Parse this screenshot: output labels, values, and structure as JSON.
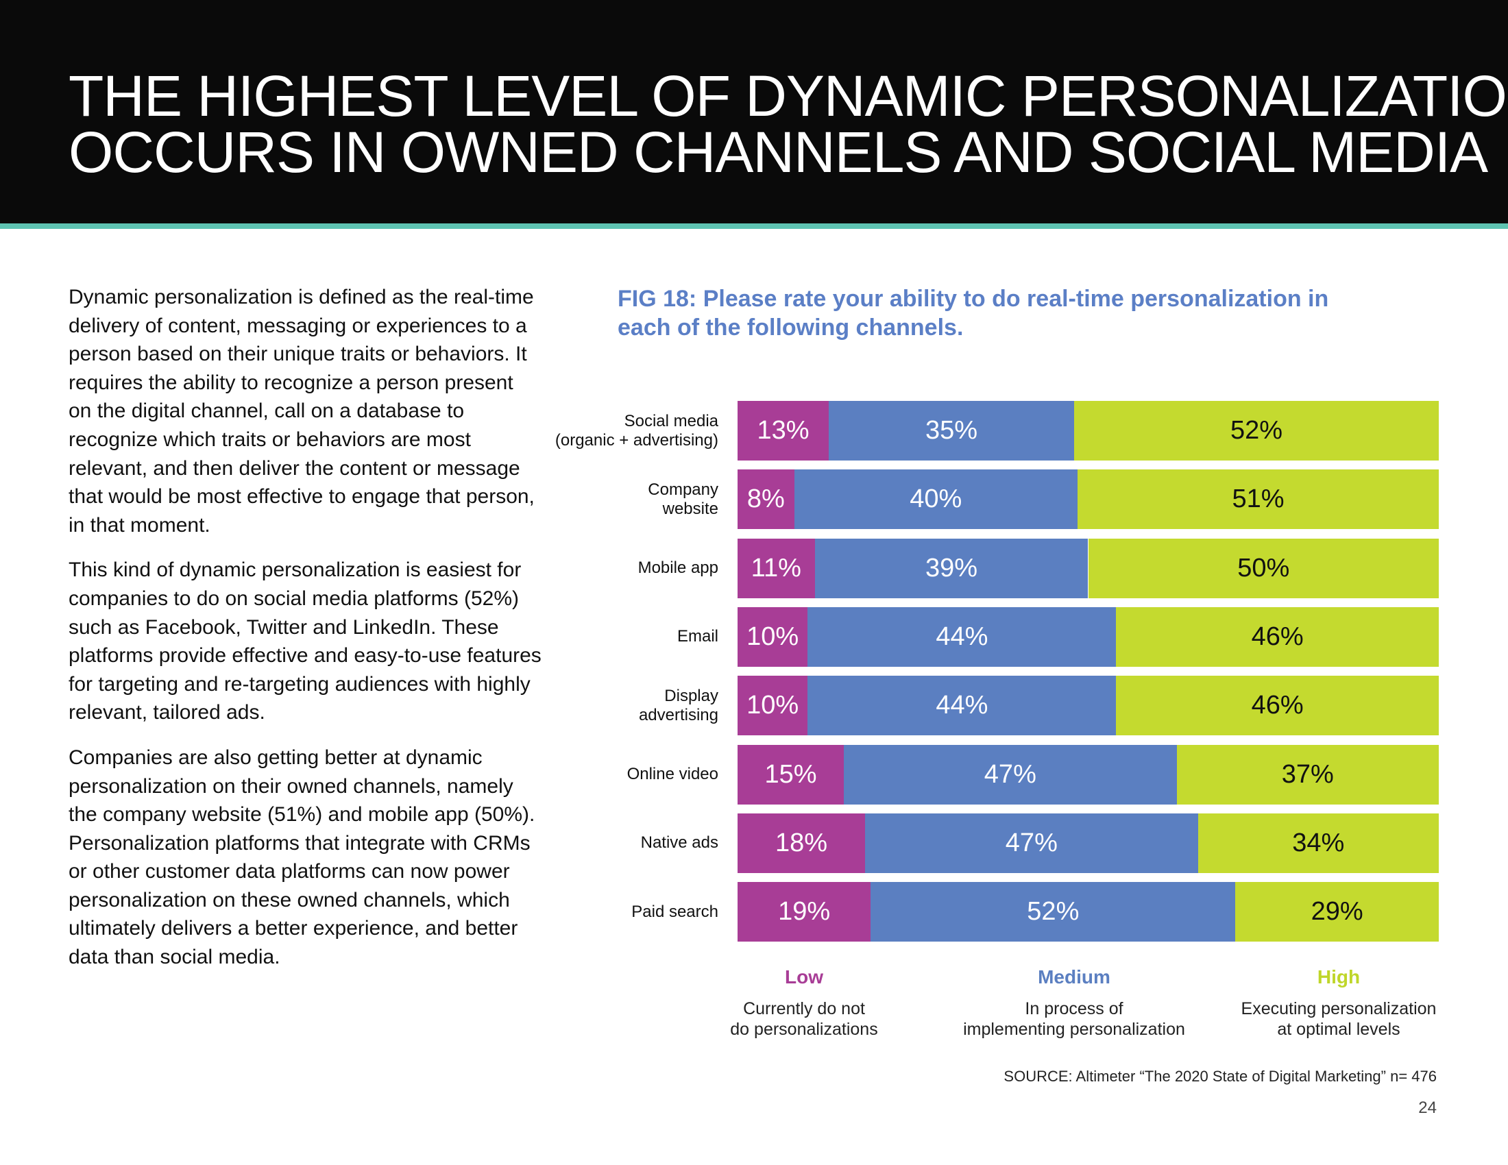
{
  "header": {
    "title_lines": [
      "THE HIGHEST LEVEL OF DYNAMIC PERSONALIZATION",
      "OCCURS IN OWNED CHANNELS AND SOCIAL MEDIA"
    ]
  },
  "body": {
    "paragraphs": [
      "Dynamic personalization is defined as the real-time delivery of content, messaging or experiences to a person based on their unique traits or behaviors. It requires the ability to recognize a person present on the digital channel, call on a database to recognize which traits or behaviors are most relevant, and then deliver the content or message that would be most effective to engage that person, in that moment.",
      "This kind of dynamic personalization is easiest for companies to do on social media platforms (52%) such as Facebook, Twitter and LinkedIn. These platforms provide effective and easy-to-use features for targeting and re-targeting audiences with highly relevant, tailored ads.",
      "Companies are also getting better at dynamic personalization on their owned channels, namely the company website (51%) and mobile app (50%). Personalization platforms that integrate with CRMs or other customer data platforms can now power personalization on these owned channels, which ultimately delivers a better experience, and better data than social media."
    ]
  },
  "chart_data": {
    "type": "bar",
    "orientation": "horizontal",
    "stacked": true,
    "title": "FIG 18: Please rate your ability to do real-time personalization in each of the following channels.",
    "categories": [
      [
        "Social media",
        "(organic + advertising)"
      ],
      [
        "Company",
        "website"
      ],
      [
        "Mobile app"
      ],
      [
        "Email"
      ],
      [
        "Display",
        "advertising"
      ],
      [
        "Online video"
      ],
      [
        "Native ads"
      ],
      [
        "Paid search"
      ]
    ],
    "series": [
      {
        "name": "Low",
        "description": "Currently do not do personalizations",
        "color": "#a83d96",
        "label_color": "#ffffff",
        "values": [
          13,
          8,
          11,
          10,
          10,
          15,
          18,
          19
        ]
      },
      {
        "name": "Medium",
        "description": "In process of implementing personalization",
        "color": "#5b7fc1",
        "label_color": "#ffffff",
        "values": [
          35,
          40,
          39,
          44,
          44,
          47,
          47,
          52
        ]
      },
      {
        "name": "High",
        "description": "Executing personalization at optimal levels",
        "color": "#c4da2f",
        "label_color": "#111111",
        "values": [
          52,
          51,
          50,
          46,
          46,
          37,
          34,
          29
        ]
      }
    ],
    "value_suffix": "%",
    "legend_placement": "bottom",
    "grid": false
  },
  "legend": {
    "low": {
      "title": "Low",
      "desc_lines": [
        "Currently do not",
        "do personalizations"
      ]
    },
    "medium": {
      "title": "Medium",
      "desc_lines": [
        "In process of",
        "implementing personalization"
      ]
    },
    "high": {
      "title": "High",
      "desc_lines": [
        "Executing personalization",
        "at optimal levels"
      ]
    }
  },
  "footer": {
    "source": "SOURCE: Altimeter “The 2020 State of Digital Marketing” n= 476",
    "page_number": "24"
  }
}
